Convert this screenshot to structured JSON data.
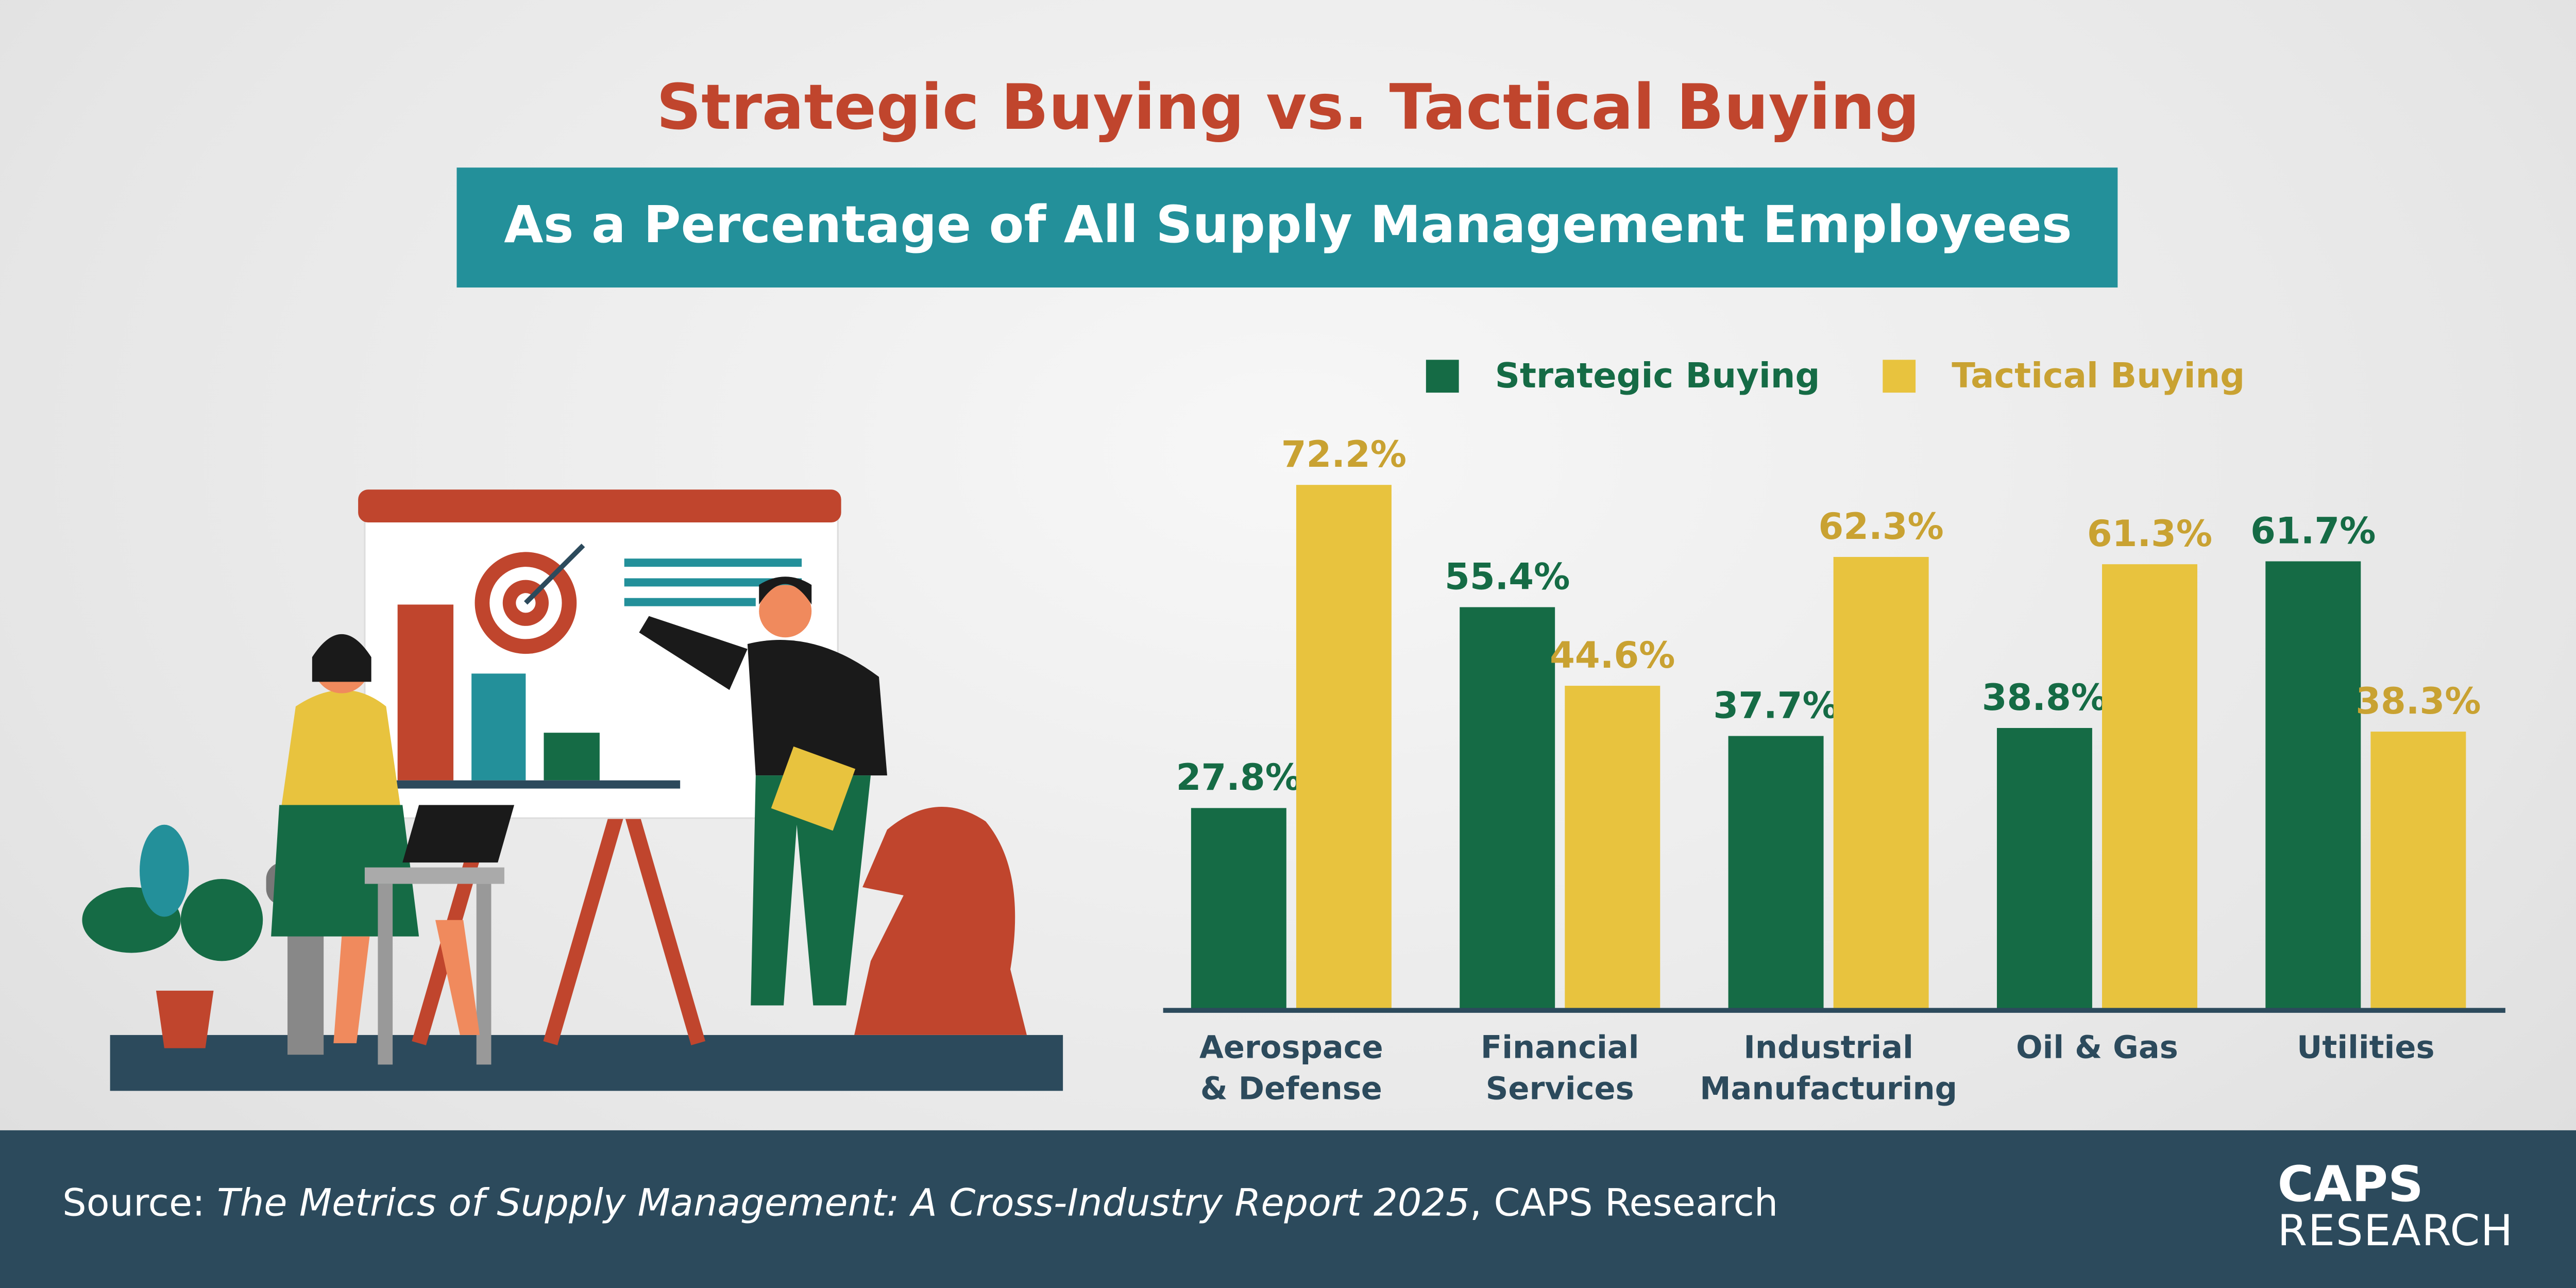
{
  "chart_data": {
    "type": "bar",
    "title": "Strategic Buying vs. Tactical Buying",
    "subtitle": "As a Percentage of All Supply Management Employees",
    "categories": [
      "Aerospace\n& Defense",
      "Financial\nServices",
      "Industrial\nManufacturing",
      "Oil & Gas",
      "Utilities"
    ],
    "series": [
      {
        "name": "Strategic Buying",
        "color": "#156b45",
        "values": [
          27.8,
          55.4,
          37.7,
          38.8,
          61.7
        ],
        "value_labels": [
          "27.8%",
          "55.4%",
          "37.7%",
          "38.8%",
          "61.7%"
        ]
      },
      {
        "name": "Tactical Buying",
        "color": "#e8c33e",
        "values": [
          72.2,
          44.6,
          62.3,
          61.3,
          38.3
        ],
        "value_labels": [
          "72.2%",
          "44.6%",
          "62.3%",
          "61.3%",
          "38.3%"
        ]
      }
    ]
  },
  "footer": {
    "source_prefix": "Source: ",
    "source_title": "The Metrics of Supply Management: A Cross-Industry Report 2025",
    "source_suffix": ", CAPS Research",
    "logo_top": "CAPS",
    "logo_bottom": "RESEARCH"
  }
}
